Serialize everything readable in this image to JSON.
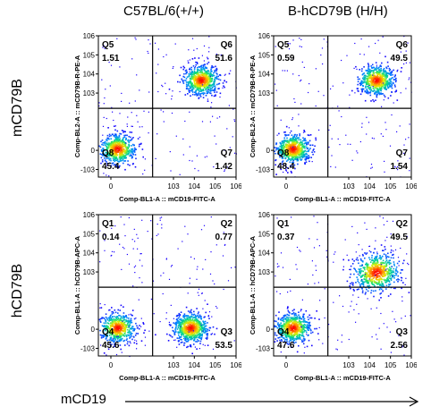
{
  "column_headers": [
    "C57BL/6(+/+)",
    "B-hCD79B (H/H)"
  ],
  "row_labels": [
    "mCD79B",
    "hCD79B"
  ],
  "bottom_axis_label": "mCD19",
  "colors": {
    "gate_line": "#000000",
    "density_low": "#1a00ff",
    "density_high": "#ff0000"
  },
  "chart_data": [
    {
      "type": "scatter",
      "subtype": "flow-cytometry-density",
      "xlabel": "Comp-BL1-A :: mCD19-FITC-A",
      "ylabel": "Comp-BL2-A :: mCD79B-R-PE-A",
      "xticks": [
        "0",
        "10^3",
        "10^4",
        "10^5",
        "10^6"
      ],
      "yticks": [
        "-10^3",
        "0",
        "10^3",
        "10^4",
        "10^5",
        "10^6"
      ],
      "quadrants": [
        {
          "name": "Q5",
          "percent": "1.51"
        },
        {
          "name": "Q6",
          "percent": "51.6"
        },
        {
          "name": "Q8",
          "percent": "45.4"
        },
        {
          "name": "Q7",
          "percent": "1.42"
        }
      ],
      "populations": [
        {
          "x": 0.3,
          "y": 0.1,
          "spread": 1.0,
          "weight": 0.45
        },
        {
          "x": 4.3,
          "y": 3.7,
          "spread": 1.0,
          "weight": 0.52
        }
      ]
    },
    {
      "type": "scatter",
      "subtype": "flow-cytometry-density",
      "xlabel": "Comp-BL1-A :: mCD19-FITC-A",
      "ylabel": "Comp-BL2-A :: mCD79B-R-PE-A",
      "xticks": [
        "0",
        "10^3",
        "10^4",
        "10^5",
        "10^6"
      ],
      "yticks": [
        "-10^3",
        "0",
        "10^3",
        "10^4",
        "10^5",
        "10^6"
      ],
      "quadrants": [
        {
          "name": "Q5",
          "percent": "0.59"
        },
        {
          "name": "Q6",
          "percent": "49.5"
        },
        {
          "name": "Q8",
          "percent": "48.4"
        },
        {
          "name": "Q7",
          "percent": "1.54"
        }
      ],
      "populations": [
        {
          "x": 0.3,
          "y": 0.1,
          "spread": 1.0,
          "weight": 0.48
        },
        {
          "x": 4.3,
          "y": 3.7,
          "spread": 1.0,
          "weight": 0.5
        }
      ]
    },
    {
      "type": "scatter",
      "subtype": "flow-cytometry-density",
      "xlabel": "Comp-BL1-A :: mCD19-FITC-A",
      "ylabel": "Comp-BL1-A :: hCD79B-APC-A",
      "xticks": [
        "0",
        "10^3",
        "10^4",
        "10^5",
        "10^6"
      ],
      "yticks": [
        "-10^3",
        "0",
        "10^3",
        "10^4",
        "10^5",
        "10^6"
      ],
      "quadrants": [
        {
          "name": "Q1",
          "percent": "0.14"
        },
        {
          "name": "Q2",
          "percent": "0.77"
        },
        {
          "name": "Q4",
          "percent": "45.6"
        },
        {
          "name": "Q3",
          "percent": "53.5"
        }
      ],
      "populations": [
        {
          "x": 0.3,
          "y": 0.1,
          "spread": 1.0,
          "weight": 0.46
        },
        {
          "x": 3.8,
          "y": 0.1,
          "spread": 1.0,
          "weight": 0.54
        }
      ]
    },
    {
      "type": "scatter",
      "subtype": "flow-cytometry-density",
      "xlabel": "Comp-BL1-A :: mCD19-FITC-A",
      "ylabel": "Comp-BL1-A :: hCD79B-APC-A",
      "xticks": [
        "0",
        "10^3",
        "10^4",
        "10^5",
        "10^6"
      ],
      "yticks": [
        "-10^3",
        "0",
        "10^3",
        "10^4",
        "10^5",
        "10^6"
      ],
      "quadrants": [
        {
          "name": "Q1",
          "percent": "0.37"
        },
        {
          "name": "Q2",
          "percent": "49.5"
        },
        {
          "name": "Q4",
          "percent": "47.6"
        },
        {
          "name": "Q3",
          "percent": "2.56"
        }
      ],
      "populations": [
        {
          "x": 0.3,
          "y": 0.1,
          "spread": 1.0,
          "weight": 0.48
        },
        {
          "x": 4.3,
          "y": 3.0,
          "spread": 1.3,
          "weight": 0.49
        }
      ]
    }
  ]
}
